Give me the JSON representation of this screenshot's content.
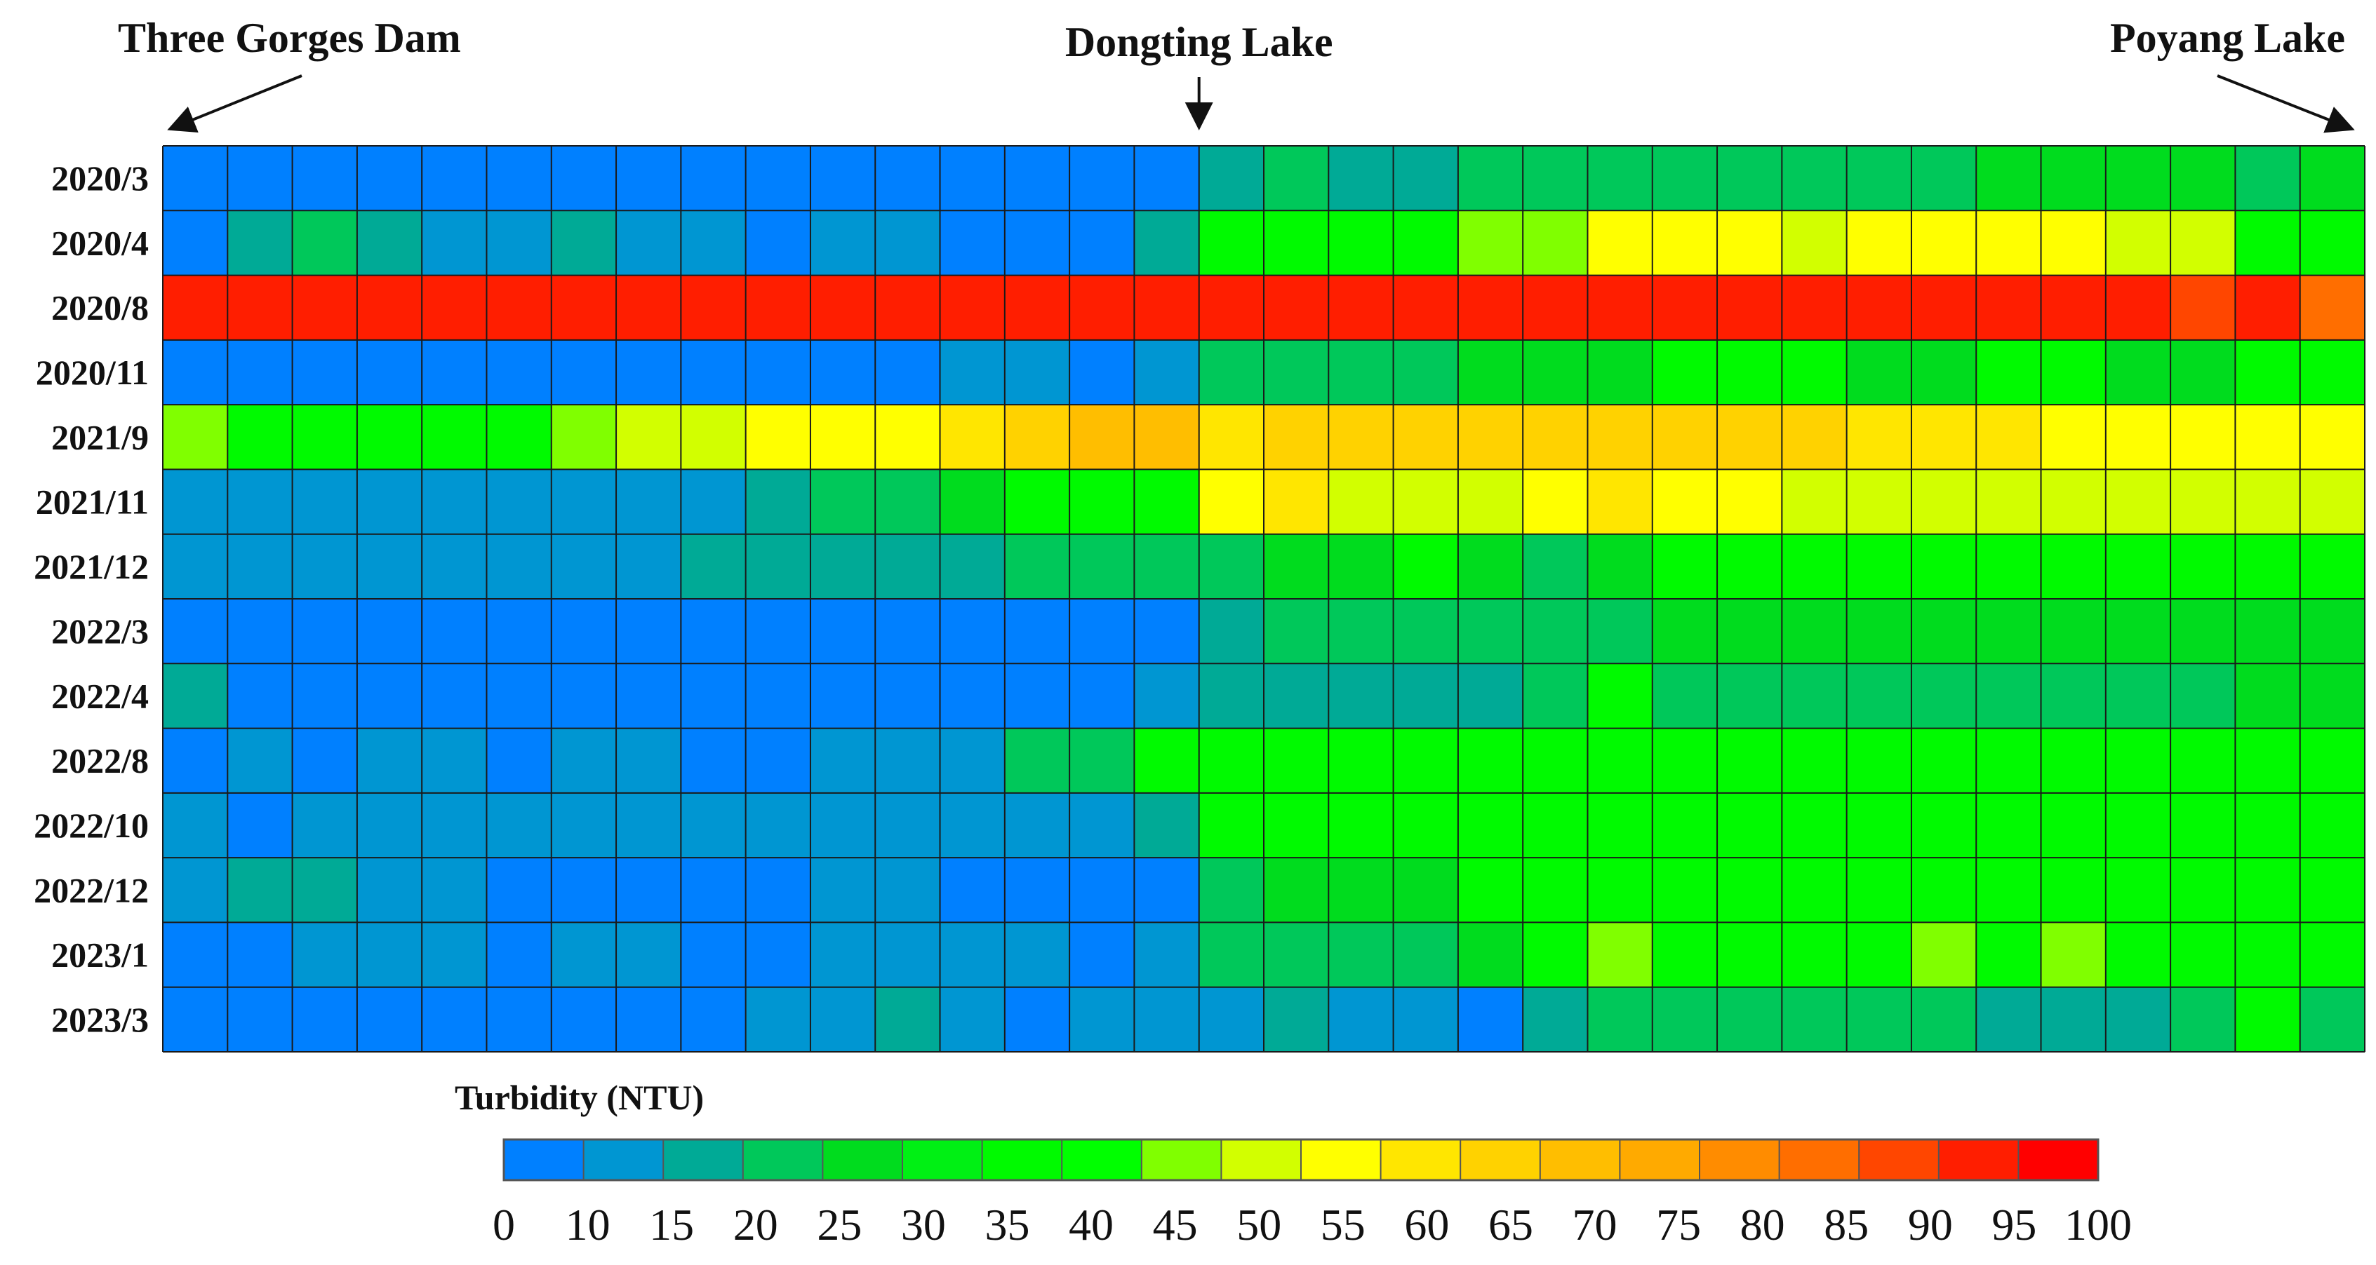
{
  "chart_data": {
    "type": "heatmap",
    "title": "",
    "xlabel": "",
    "ylabel": "",
    "annotations": [
      {
        "text": "Three Gorges Dam",
        "column": 0,
        "arrow": "diagonal-left"
      },
      {
        "text": "Dongting Lake",
        "column": 16,
        "arrow": "down"
      },
      {
        "text": "Poyang Lake",
        "column": 33,
        "arrow": "diagonal-right"
      }
    ],
    "rows": [
      "2020/3",
      "2020/4",
      "2020/8",
      "2020/11",
      "2021/9",
      "2021/11",
      "2021/12",
      "2022/3",
      "2022/4",
      "2022/8",
      "2022/10",
      "2022/12",
      "2023/1",
      "2023/3"
    ],
    "n_columns": 34,
    "values": [
      [
        5,
        5,
        5,
        5,
        5,
        5,
        5,
        5,
        5,
        5,
        5,
        5,
        5,
        5,
        5,
        5,
        17,
        22,
        17,
        17,
        22,
        22,
        22,
        22,
        22,
        22,
        22,
        22,
        27,
        27,
        27,
        27,
        22,
        27
      ],
      [
        5,
        17,
        22,
        17,
        12,
        12,
        17,
        12,
        12,
        5,
        12,
        12,
        5,
        5,
        5,
        17,
        37,
        37,
        37,
        37,
        47,
        47,
        57,
        57,
        57,
        52,
        57,
        57,
        57,
        57,
        52,
        52,
        37,
        37
      ],
      [
        97,
        97,
        97,
        97,
        97,
        97,
        97,
        97,
        97,
        97,
        97,
        97,
        97,
        97,
        97,
        97,
        97,
        97,
        97,
        97,
        97,
        97,
        97,
        97,
        97,
        97,
        97,
        97,
        97,
        97,
        97,
        92,
        97,
        87
      ],
      [
        5,
        5,
        5,
        5,
        5,
        5,
        5,
        5,
        5,
        5,
        5,
        5,
        12,
        12,
        5,
        12,
        22,
        22,
        22,
        22,
        27,
        27,
        27,
        37,
        37,
        37,
        27,
        27,
        37,
        37,
        27,
        27,
        37,
        37
      ],
      [
        47,
        37,
        37,
        37,
        37,
        37,
        47,
        52,
        52,
        57,
        57,
        57,
        62,
        67,
        72,
        72,
        62,
        67,
        67,
        67,
        67,
        67,
        67,
        67,
        67,
        67,
        62,
        62,
        62,
        57,
        57,
        57,
        57,
        57
      ],
      [
        12,
        12,
        12,
        12,
        12,
        12,
        12,
        12,
        12,
        17,
        22,
        22,
        27,
        37,
        37,
        37,
        57,
        62,
        52,
        52,
        52,
        57,
        62,
        57,
        57,
        52,
        52,
        52,
        52,
        52,
        52,
        52,
        52,
        52
      ],
      [
        12,
        12,
        12,
        12,
        12,
        12,
        12,
        12,
        17,
        17,
        17,
        17,
        17,
        22,
        22,
        22,
        22,
        27,
        27,
        37,
        27,
        22,
        27,
        37,
        37,
        37,
        37,
        37,
        37,
        37,
        37,
        37,
        37,
        37
      ],
      [
        5,
        5,
        5,
        5,
        5,
        5,
        5,
        5,
        5,
        5,
        5,
        5,
        5,
        5,
        5,
        5,
        17,
        22,
        22,
        22,
        22,
        22,
        22,
        27,
        27,
        27,
        27,
        27,
        27,
        27,
        27,
        27,
        27,
        27
      ],
      [
        17,
        5,
        5,
        5,
        5,
        5,
        5,
        5,
        5,
        5,
        5,
        5,
        5,
        5,
        5,
        12,
        17,
        17,
        17,
        17,
        17,
        22,
        37,
        22,
        22,
        22,
        22,
        22,
        22,
        22,
        22,
        22,
        27,
        27
      ],
      [
        5,
        12,
        5,
        12,
        12,
        5,
        12,
        12,
        5,
        5,
        12,
        12,
        12,
        22,
        22,
        37,
        37,
        37,
        37,
        37,
        37,
        37,
        37,
        37,
        37,
        37,
        37,
        37,
        37,
        37,
        37,
        37,
        37,
        37
      ],
      [
        12,
        5,
        12,
        12,
        12,
        12,
        12,
        12,
        12,
        12,
        12,
        12,
        12,
        12,
        12,
        17,
        37,
        37,
        37,
        37,
        37,
        37,
        37,
        37,
        37,
        37,
        37,
        37,
        37,
        37,
        37,
        37,
        37,
        37
      ],
      [
        12,
        17,
        17,
        12,
        12,
        5,
        5,
        5,
        5,
        5,
        12,
        12,
        5,
        5,
        5,
        5,
        22,
        27,
        27,
        27,
        37,
        37,
        37,
        37,
        37,
        37,
        37,
        37,
        37,
        37,
        37,
        37,
        37,
        37
      ],
      [
        5,
        5,
        12,
        12,
        12,
        5,
        12,
        12,
        5,
        5,
        12,
        12,
        12,
        12,
        5,
        12,
        22,
        22,
        22,
        22,
        27,
        37,
        47,
        37,
        37,
        37,
        37,
        47,
        37,
        47,
        37,
        37,
        37,
        37
      ],
      [
        5,
        5,
        5,
        5,
        5,
        5,
        5,
        5,
        5,
        12,
        12,
        17,
        12,
        5,
        12,
        12,
        12,
        17,
        12,
        12,
        5,
        17,
        22,
        22,
        22,
        22,
        22,
        22,
        17,
        17,
        17,
        22,
        37,
        22
      ]
    ],
    "colorbar": {
      "title": "Turbidity (NTU)",
      "ticks": [
        "0",
        "10",
        "15",
        "20",
        "25",
        "30",
        "35",
        "40",
        "45",
        "50",
        "55",
        "60",
        "65",
        "70",
        "75",
        "80",
        "85",
        "90",
        "95",
        "100"
      ],
      "colors": [
        "#0080ff",
        "#0096d2",
        "#00aa96",
        "#00c85a",
        "#00dc1e",
        "#00f014",
        "#00fa00",
        "#00ff00",
        "#80ff00",
        "#d2ff00",
        "#ffff00",
        "#ffe600",
        "#ffd200",
        "#ffbe00",
        "#ffaa00",
        "#ff8c00",
        "#ff6e00",
        "#ff4600",
        "#ff1e00",
        "#ff0000"
      ]
    }
  }
}
